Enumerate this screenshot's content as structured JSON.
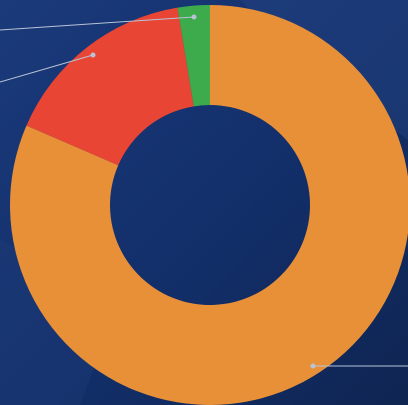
{
  "chart_data": {
    "type": "donut",
    "categories": [
      null,
      null,
      null
    ],
    "values": [
      81.5,
      15.9,
      2.6
    ],
    "colors": [
      "#e89038",
      "#e94535",
      "#3daa4c"
    ]
  }
}
